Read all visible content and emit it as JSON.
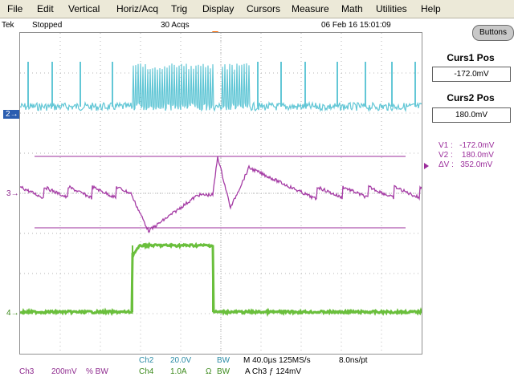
{
  "menu": [
    "File",
    "Edit",
    "Vertical",
    "Horiz/Acq",
    "Trig",
    "Display",
    "Cursors",
    "Measure",
    "Math",
    "Utilities",
    "Help"
  ],
  "status": {
    "brand": "Tek",
    "state": "Stopped",
    "acqs": "30 Acqs",
    "datetime": "06 Feb 16 15:01:09"
  },
  "panel": {
    "buttons_label": "Buttons",
    "curs1_title": "Curs1 Pos",
    "curs1_value": "-172.0mV",
    "curs2_title": "Curs2 Pos",
    "curs2_value": "180.0mV",
    "v1": "V1 :   -172.0mV",
    "v2": "V2 :    180.0mV",
    "dv": "ΔV :   352.0mV"
  },
  "channels": {
    "ch2_marker": "2",
    "ch3_marker": "3",
    "ch4_marker": "4"
  },
  "bottom": {
    "ch2_name": "Ch2",
    "ch2_scale": "20.0V",
    "ch2_bw": "BW",
    "ch3_name": "Ch3",
    "ch3_scale": "200mV",
    "ch3_flags": "% BW",
    "ch4_name": "Ch4",
    "ch4_scale": "1.0A",
    "ch4_flags": "Ω",
    "ch4_bw": "BW",
    "timebase": "M 40.0µs 125MS/s",
    "res": "8.0ns/pt",
    "trigger": "A  Ch3  ƒ  124mV"
  },
  "colors": {
    "ch2": "#63c7d6",
    "ch3": "#a53ca5",
    "ch4": "#6abf3c",
    "cursor": "#9b2d9b",
    "grid": "#b4b4b4"
  }
}
